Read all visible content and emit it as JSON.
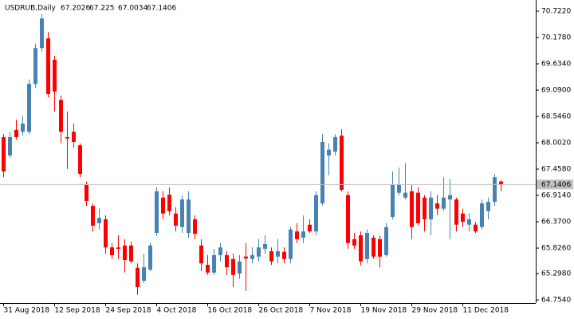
{
  "chart_data": {
    "type": "candlestick",
    "symbol": "USDRUB,Daily",
    "up_color": "#4682B4",
    "down_color": "#FF0000",
    "categories": [
      "31 Aug 2018",
      null,
      null,
      null,
      null,
      null,
      null,
      null,
      "12 Sep 2018",
      null,
      null,
      null,
      null,
      null,
      null,
      null,
      "24 Sep 2018",
      null,
      null,
      null,
      null,
      null,
      null,
      null,
      "4 Oct 2018",
      null,
      null,
      null,
      null,
      null,
      null,
      null,
      "16 Oct 2018",
      null,
      null,
      null,
      null,
      null,
      null,
      null,
      "26 Oct 2018",
      null,
      null,
      null,
      null,
      null,
      null,
      null,
      "7 Nov 2018",
      null,
      null,
      null,
      null,
      null,
      null,
      null,
      "19 Nov 2018",
      null,
      null,
      null,
      null,
      null,
      null,
      null,
      "29 Nov 2018",
      null,
      null,
      null,
      null,
      null,
      null,
      null,
      "11 Dec 2018",
      null,
      null,
      null,
      null,
      null,
      null
    ],
    "open": [
      68.12,
      67.74,
      68.27,
      68.23,
      68.23,
      69.22,
      69.96,
      70.16,
      69.72,
      68.89,
      68.12,
      68.23,
      67.95,
      67.13,
      66.7,
      66.34,
      66.42,
      65.84,
      65.84,
      65.88,
      65.88,
      65.42,
      65.15,
      65.38,
      66.14,
      66.87,
      66.93,
      66.54,
      66.26,
      66.14,
      66.42,
      65.88,
      65.48,
      65.32,
      65.68,
      65.68,
      65.6,
      65.3,
      65.65,
      65.6,
      65.65,
      65.81,
      65.76,
      65.65,
      65.75,
      65.6,
      66.17,
      66.04,
      66.31,
      66.17,
      66.75,
      67.74,
      67.82,
      68.15,
      66.92,
      66.01,
      66.09,
      65.6,
      66.04,
      66.01,
      65.68,
      66.47,
      66.97,
      66.87,
      67.0,
      66.97,
      66.87,
      66.42,
      66.75,
      66.64,
      66.83,
      66.83,
      66.54,
      66.31,
      66.31,
      66.26,
      66.59,
      66.78,
      67.2026
    ],
    "high": [
      68.18,
      68.23,
      68.48,
      68.56,
      69.31,
      70.05,
      70.66,
      70.29,
      69.8,
      68.98,
      68.65,
      68.4,
      67.99,
      67.2,
      66.75,
      66.64,
      66.5,
      65.93,
      66.09,
      66.01,
      65.96,
      65.51,
      65.71,
      65.93,
      67.08,
      67.0,
      67.08,
      66.67,
      66.92,
      67.0,
      66.5,
      66.01,
      65.68,
      65.81,
      65.93,
      65.76,
      65.71,
      65.68,
      65.93,
      65.84,
      66.01,
      66.09,
      65.84,
      66.01,
      65.84,
      66.26,
      66.34,
      66.5,
      66.42,
      67.0,
      68.18,
      67.99,
      68.18,
      68.28,
      67.0,
      66.14,
      66.17,
      66.21,
      66.09,
      66.08,
      66.34,
      67.41,
      67.49,
      67.58,
      67.13,
      67.08,
      66.92,
      67.0,
      66.92,
      67.29,
      67.25,
      66.87,
      66.64,
      66.54,
      66.37,
      66.83,
      66.87,
      67.36,
      67.225
    ],
    "low": [
      67.29,
      67.69,
      68.07,
      68.15,
      68.18,
      69.14,
      69.88,
      68.94,
      68.65,
      67.99,
      67.46,
      67.9,
      67.29,
      66.7,
      66.17,
      66.21,
      65.71,
      65.6,
      65.6,
      65.32,
      65.51,
      64.86,
      65.1,
      65.35,
      66.08,
      66.42,
      66.5,
      66.17,
      66.14,
      66.04,
      66.01,
      65.35,
      65.27,
      65.27,
      65.55,
      65.27,
      65.02,
      65.19,
      64.94,
      65.51,
      65.55,
      65.71,
      65.48,
      65.51,
      65.51,
      65.51,
      65.93,
      65.93,
      66.14,
      66.09,
      66.7,
      67.33,
      67.74,
      67.0,
      65.81,
      65.81,
      65.47,
      65.51,
      65.6,
      65.43,
      65.65,
      66.42,
      66.92,
      66.83,
      66.01,
      66.29,
      66.17,
      66.09,
      66.5,
      66.59,
      66.01,
      66.17,
      66.26,
      66.17,
      66.14,
      66.21,
      66.42,
      66.7,
      67.0034
    ],
    "close": [
      67.41,
      68.12,
      68.12,
      68.4,
      69.22,
      69.96,
      70.57,
      69.01,
      69.06,
      68.23,
      68.09,
      68.02,
      67.36,
      66.8,
      66.29,
      66.45,
      65.84,
      65.68,
      65.81,
      65.58,
      65.55,
      65.02,
      65.43,
      65.88,
      67.0,
      66.54,
      66.59,
      66.29,
      66.83,
      66.83,
      66.12,
      65.51,
      65.32,
      65.68,
      65.84,
      65.43,
      65.27,
      65.55,
      65.61,
      65.68,
      65.84,
      65.91,
      65.55,
      65.76,
      65.6,
      66.21,
      66.01,
      66.17,
      66.17,
      66.92,
      68.02,
      67.86,
      68.12,
      67.03,
      65.93,
      65.88,
      65.55,
      66.14,
      65.65,
      65.65,
      66.26,
      67.13,
      67.13,
      66.97,
      66.26,
      66.34,
      66.42,
      66.87,
      66.64,
      66.87,
      66.92,
      66.31,
      66.37,
      66.42,
      66.17,
      66.75,
      66.78,
      67.29,
      67.1406
    ],
    "ylim": [
      64.69,
      70.953
    ],
    "yticks": [
      {
        "value": 70.722,
        "label": "70.7220"
      },
      {
        "value": 70.178,
        "label": "70.1780"
      },
      {
        "value": 69.634,
        "label": "69.6340"
      },
      {
        "value": 69.09,
        "label": "69.0900"
      },
      {
        "value": 68.546,
        "label": "68.5460"
      },
      {
        "value": 68.002,
        "label": "68.0020"
      },
      {
        "value": 67.458,
        "label": "67.4580"
      },
      {
        "value": 66.914,
        "label": "66.9140"
      },
      {
        "value": 66.37,
        "label": "66.3700"
      },
      {
        "value": 65.826,
        "label": "65.8260"
      },
      {
        "value": 65.298,
        "label": "65.2980"
      },
      {
        "value": 64.754,
        "label": "64.7540"
      }
    ],
    "grid": false
  }
}
